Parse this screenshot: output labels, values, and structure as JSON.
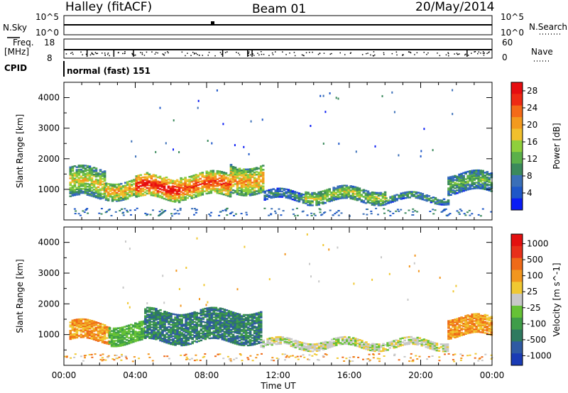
{
  "header": {
    "site": "Halley (fitACF)",
    "beam": "Beam 01",
    "date": "20/May/2014"
  },
  "strip_labels": {
    "nsky": "N.Sky",
    "nsearch": "N.Search",
    "freq": "Freq.",
    "mhz": "[MHz]",
    "nave": "Nave",
    "cpid": "CPID",
    "program": "normal (fast) 151",
    "noise_top": "10^5",
    "noise_bottom": "10^0",
    "freq_top": "18",
    "freq_bottom": "8",
    "nave_top": "60",
    "nave_bottom": "0"
  },
  "chart_data": [
    {
      "type": "heatmap",
      "panel": "power",
      "ylabel": "Slant Range [km]",
      "ylim": [
        0,
        4500
      ],
      "yticks": [
        "1000",
        "2000",
        "3000",
        "4000"
      ],
      "xlim": [
        0,
        24
      ],
      "xticks": [
        "00:00",
        "04:00",
        "08:00",
        "12:00",
        "16:00",
        "20:00",
        "00:00"
      ],
      "colorbar": {
        "label": "Power [dB]",
        "ticks": [
          "4",
          "8",
          "12",
          "16",
          "20",
          "24",
          "28"
        ],
        "colors": [
          "#0a1cf5",
          "#1e57c8",
          "#3a6fb8",
          "#3b8a5c",
          "#5bb04a",
          "#8fcf3c",
          "#f1c02d",
          "#f39a1e",
          "#f46a18",
          "#ee2a14",
          "#e60d10"
        ]
      },
      "bands": [
        {
          "t0": 0.3,
          "t1": 2.3,
          "r0": 700,
          "r1": 1650,
          "level": 0.55
        },
        {
          "t0": 2.3,
          "t1": 4.0,
          "r0": 720,
          "r1": 1300,
          "level": 0.65
        },
        {
          "t0": 4.0,
          "t1": 6.5,
          "r0": 680,
          "r1": 1400,
          "level": 0.9
        },
        {
          "t0": 6.5,
          "t1": 9.3,
          "r0": 750,
          "r1": 1500,
          "level": 0.8
        },
        {
          "t0": 9.3,
          "t1": 11.2,
          "r0": 900,
          "r1": 1800,
          "level": 0.65
        },
        {
          "t0": 11.2,
          "t1": 13.5,
          "r0": 620,
          "r1": 900,
          "level": 0.3
        },
        {
          "t0": 13.5,
          "t1": 18.0,
          "r0": 580,
          "r1": 1000,
          "level": 0.5
        },
        {
          "t0": 18.0,
          "t1": 21.5,
          "r0": 600,
          "r1": 820,
          "level": 0.35
        },
        {
          "t0": 21.5,
          "t1": 24.0,
          "r0": 900,
          "r1": 1500,
          "level": 0.4
        }
      ]
    },
    {
      "type": "heatmap",
      "panel": "velocity",
      "ylabel": "Slant Range [km]",
      "xlabel": "Time UT",
      "ylim": [
        0,
        4500
      ],
      "yticks": [
        "1000",
        "2000",
        "3000",
        "4000"
      ],
      "xlim": [
        0,
        24
      ],
      "xticks": [
        "00:00",
        "04:00",
        "08:00",
        "12:00",
        "16:00",
        "20:00",
        "00:00"
      ],
      "colorbar": {
        "label": "Velocity [m s^-1]",
        "ticks": [
          "1000",
          "500",
          "100",
          "25",
          "-25",
          "-100",
          "-500",
          "-1000"
        ],
        "colors": [
          "#1a3bb5",
          "#2f5aa3",
          "#2f7a60",
          "#3f9d49",
          "#66c236",
          "#c8c8c8",
          "#f0c832",
          "#f2961e",
          "#ef6a18",
          "#e8301a",
          "#e31010"
        ]
      },
      "bands": [
        {
          "t0": 0.3,
          "t1": 2.5,
          "r0": 780,
          "r1": 1400,
          "vclass": "away"
        },
        {
          "t0": 2.5,
          "t1": 4.5,
          "r0": 720,
          "r1": 1350,
          "vclass": "toward_slow"
        },
        {
          "t0": 4.5,
          "t1": 11.0,
          "r0": 750,
          "r1": 1750,
          "vclass": "toward"
        },
        {
          "t0": 11.0,
          "t1": 21.5,
          "r0": 560,
          "r1": 800,
          "vclass": "zero"
        },
        {
          "t0": 21.5,
          "t1": 24.0,
          "r0": 950,
          "r1": 1550,
          "vclass": "away"
        }
      ]
    }
  ]
}
